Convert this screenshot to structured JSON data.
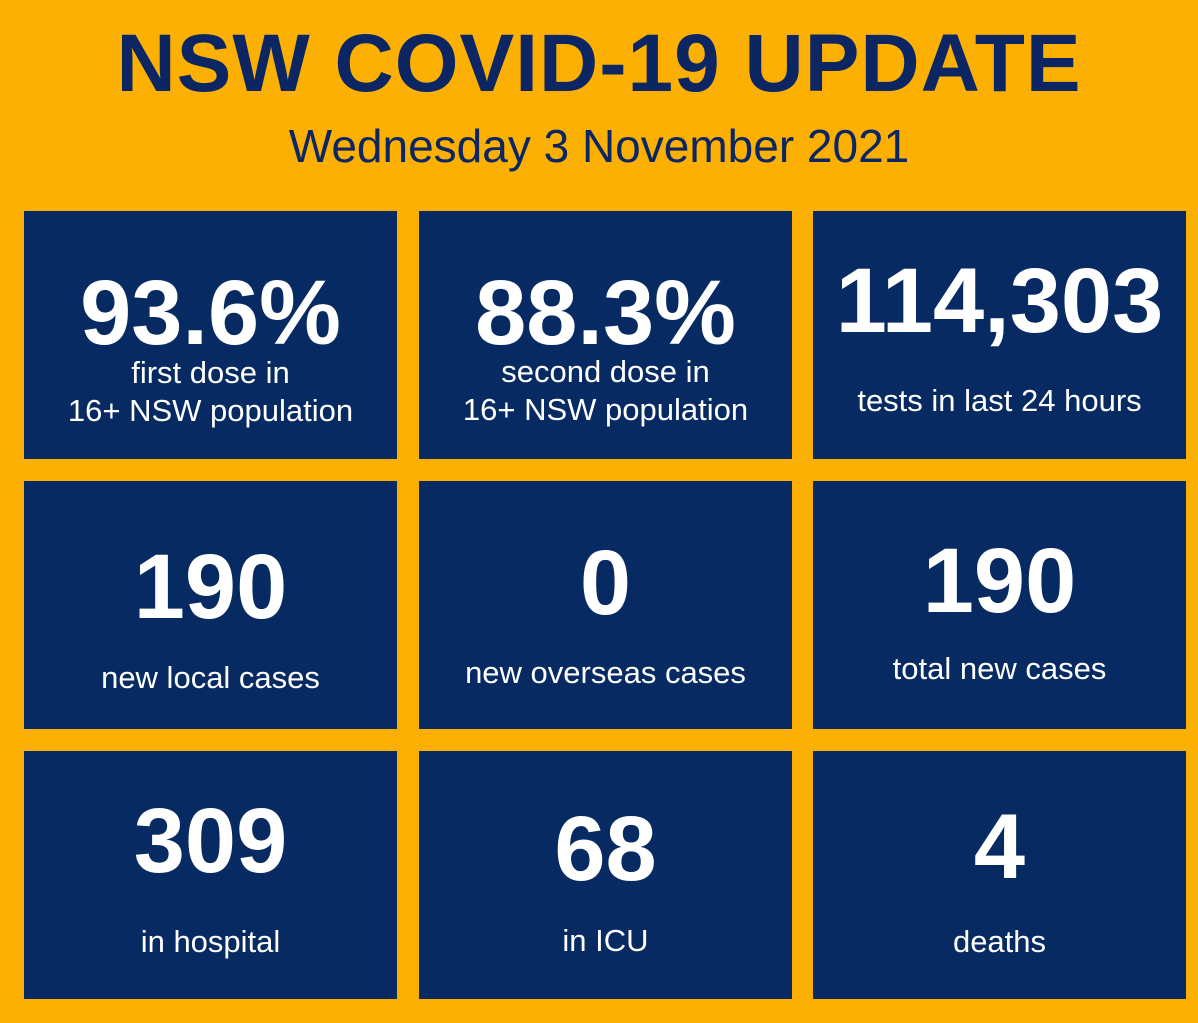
{
  "header": {
    "title": "NSW COVID-19 UPDATE",
    "date": "Wednesday 3 November 2021"
  },
  "stats": [
    {
      "value": "93.6%",
      "label_line1": "first dose in",
      "label_line2": "16+ NSW population"
    },
    {
      "value": "88.3%",
      "label_line1": "second dose in",
      "label_line2": "16+ NSW population"
    },
    {
      "value": "114,303",
      "label_line1": "tests in last 24 hours"
    },
    {
      "value": "190",
      "label_line1": "new local cases"
    },
    {
      "value": "0",
      "label_line1": "new overseas cases"
    },
    {
      "value": "190",
      "label_line1": "total new cases"
    },
    {
      "value": "309",
      "label_line1": "in hospital"
    },
    {
      "value": "68",
      "label_line1": "in ICU"
    },
    {
      "value": "4",
      "label_line1": "deaths"
    }
  ],
  "colors": {
    "background": "#FBB003",
    "tile": "#062A61",
    "heading_text": "#0B2662",
    "tile_text": "#FFFFFF"
  }
}
